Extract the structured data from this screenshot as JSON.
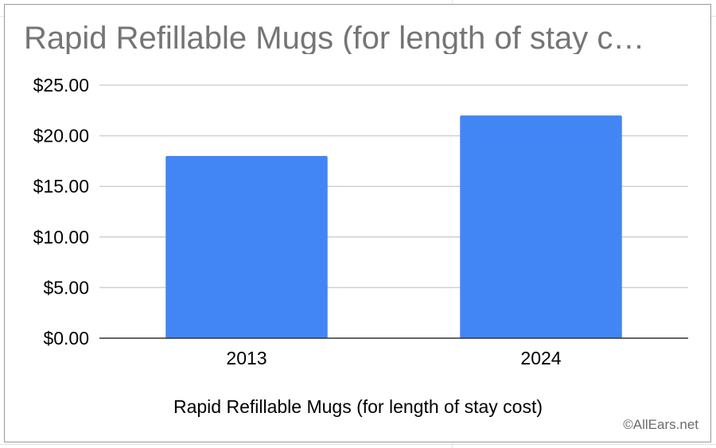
{
  "chart_data": {
    "type": "bar",
    "title": "Rapid Refillable Mugs (for length of stay c…",
    "categories": [
      "2013",
      "2024"
    ],
    "values": [
      18,
      22
    ],
    "xlabel": "Rapid Refillable Mugs (for length of stay cost)",
    "ylabel": "",
    "ylim": [
      0,
      25
    ],
    "yticks": [
      0,
      5,
      10,
      15,
      20,
      25
    ],
    "ytick_labels": [
      "$0.00",
      "$5.00",
      "$10.00",
      "$15.00",
      "$20.00",
      "$25.00"
    ],
    "grid": true,
    "legend": "none",
    "bar_color": "#4285f4"
  },
  "watermark": "©AllEars.net"
}
